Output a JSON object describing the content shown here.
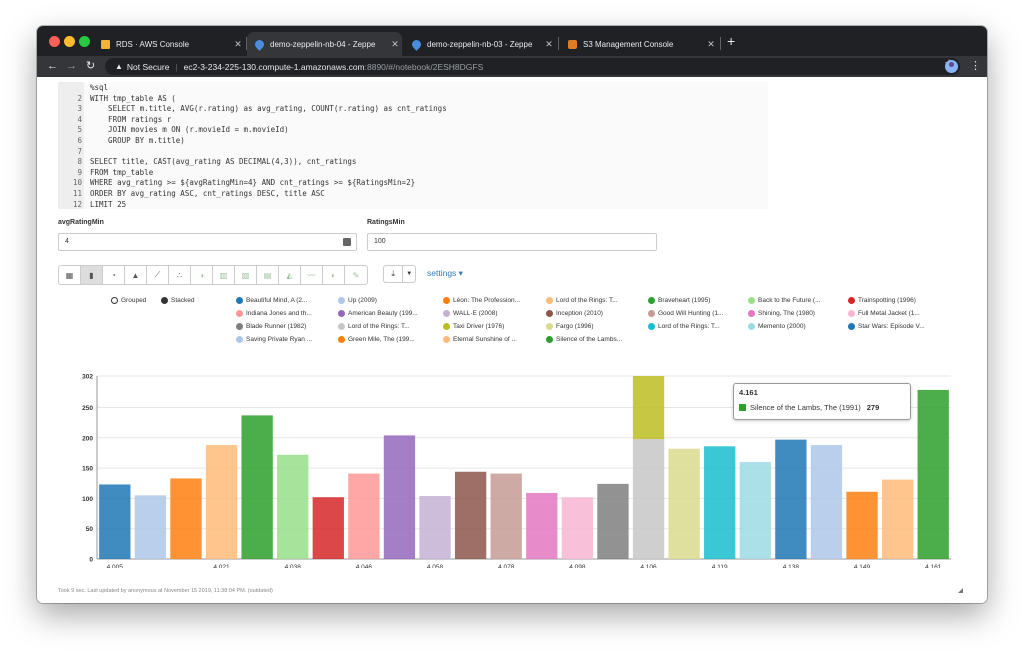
{
  "tabs": [
    {
      "title": "RDS · AWS Console",
      "icon": "aws-box-icon",
      "color": "#f2b632"
    },
    {
      "title": "demo-zeppelin-nb-04 - Zeppe",
      "icon": "zeppelin-icon",
      "color": "#4a8ce0"
    },
    {
      "title": "demo-zeppelin-nb-03 - Zeppe",
      "icon": "zeppelin-icon",
      "color": "#4a8ce0"
    },
    {
      "title": "S3 Management Console",
      "icon": "aws-s3-icon",
      "color": "#e07c24"
    }
  ],
  "address": {
    "security": "Not Secure",
    "host": "ec2-3-234-225-130.compute-1.amazonaws.com",
    "path": ":8890/#/notebook/2ESH8DGFS"
  },
  "code": [
    {
      "n": "",
      "t": "%sql"
    },
    {
      "n": "2",
      "t": "WITH tmp_table AS ("
    },
    {
      "n": "3",
      "t": "    SELECT m.title, AVG(r.rating) as avg_rating, COUNT(r.rating) as cnt_ratings"
    },
    {
      "n": "4",
      "t": "    FROM ratings r"
    },
    {
      "n": "5",
      "t": "    JOIN movies m ON (r.movieId = m.movieId)"
    },
    {
      "n": "6",
      "t": "    GROUP BY m.title)"
    },
    {
      "n": "7",
      "t": ""
    },
    {
      "n": "8",
      "t": "SELECT title, CAST(avg_rating AS DECIMAL(4,3)), cnt_ratings"
    },
    {
      "n": "9",
      "t": "FROM tmp_table"
    },
    {
      "n": "10",
      "t": "WHERE avg_rating >= ${avgRatingMin=4} AND cnt_ratings >= ${RatingsMin=2}"
    },
    {
      "n": "11",
      "t": "ORDER BY avg_rating ASC, cnt_ratings DESC, title ASC"
    },
    {
      "n": "12",
      "t": "LIMIT 25"
    }
  ],
  "params": {
    "avg_label": "avgRatingMin",
    "avg_value": "4",
    "min_label": "RatingsMin",
    "min_value": "100"
  },
  "vis_toolbar": [
    "table-icon",
    "bar-chart-icon",
    "pie-chart-icon",
    "area-chart-icon",
    "line-chart-icon",
    "scatter-chart-icon",
    "pie-alt-icon",
    "column-icon",
    "grid-icon",
    "table-alt-icon",
    "area-alt-icon",
    "line-alt-icon",
    "map-icon",
    "multiline-icon"
  ],
  "settings_label": "settings",
  "legend": {
    "grouped": "Grouped",
    "stacked": "Stacked",
    "items": [
      {
        "label": "Beautiful Mind, A (2...",
        "color": "#1f77b4"
      },
      {
        "label": "Up (2009)",
        "color": "#aec7e8"
      },
      {
        "label": "Léon: The Profession...",
        "color": "#ff7f0e"
      },
      {
        "label": "Lord of the Rings: T...",
        "color": "#ffbb78"
      },
      {
        "label": "Braveheart (1995)",
        "color": "#2ca02c"
      },
      {
        "label": "Back to the Future (...",
        "color": "#98df8a"
      },
      {
        "label": "Trainspotting (1996)",
        "color": "#d62728"
      },
      {
        "label": "Indiana Jones and th...",
        "color": "#ff9896"
      },
      {
        "label": "American Beauty (199...",
        "color": "#9467bd"
      },
      {
        "label": "WALL·E (2008)",
        "color": "#c5b0d5"
      },
      {
        "label": "Inception (2010)",
        "color": "#8c564b"
      },
      {
        "label": "Good Will Hunting (1...",
        "color": "#c49c94"
      },
      {
        "label": "Shining, The (1980)",
        "color": "#e377c2"
      },
      {
        "label": "Full Metal Jacket (1...",
        "color": "#f7b6d2"
      },
      {
        "label": "Blade Runner (1982)",
        "color": "#7f7f7f"
      },
      {
        "label": "Lord of the Rings: T...",
        "color": "#c7c7c7"
      },
      {
        "label": "Taxi Driver (1976)",
        "color": "#bcbd22"
      },
      {
        "label": "Fargo (1996)",
        "color": "#dbdb8d"
      },
      {
        "label": "Lord of the Rings: T...",
        "color": "#17becf"
      },
      {
        "label": "Memento (2000)",
        "color": "#9edae5"
      },
      {
        "label": "Star Wars: Episode V...",
        "color": "#1f77b4"
      },
      {
        "label": "Saving Private Ryan ...",
        "color": "#aec7e8"
      },
      {
        "label": "Green Mile, The (199...",
        "color": "#ff7f0e"
      },
      {
        "label": "Eternal Sunshine of ...",
        "color": "#ffbb78"
      },
      {
        "label": "Silence of the Lambs...",
        "color": "#2ca02c"
      }
    ]
  },
  "tooltip": {
    "title": "4.161",
    "series": "Silence of the Lambs, The (1991)",
    "value": "279",
    "color": "#2ca02c"
  },
  "footer": "Took 9 sec. Last updated by anonymous at November 15 2019, 11:38:04 PM. (outdated)",
  "chart_data": {
    "type": "bar",
    "stacked": true,
    "ylim": [
      0,
      302
    ],
    "yticks": [
      0,
      50,
      100,
      150,
      200,
      250,
      302
    ],
    "xticks": [
      "4.005",
      "4.021",
      "4.038",
      "4.046",
      "4.058",
      "4.078",
      "4.098",
      "4.106",
      "4.119",
      "4.138",
      "4.149",
      "4.161"
    ],
    "grid": true,
    "bars": [
      {
        "value": 123,
        "color": "#1f77b4",
        "tick": "4.005"
      },
      {
        "value": 105,
        "color": "#aec7e8",
        "tick": ""
      },
      {
        "value": 133,
        "color": "#ff7f0e",
        "tick": ""
      },
      {
        "value": 188,
        "color": "#ffbb78",
        "tick": "4.021"
      },
      {
        "value": 237,
        "color": "#2ca02c",
        "tick": ""
      },
      {
        "value": 172,
        "color": "#98df8a",
        "tick": "4.038"
      },
      {
        "value": 102,
        "color": "#d62728",
        "tick": ""
      },
      {
        "value": 141,
        "color": "#ff9896",
        "tick": "4.046"
      },
      {
        "value": 204,
        "color": "#9467bd",
        "tick": ""
      },
      {
        "value": 104,
        "color": "#c5b0d5",
        "tick": "4.058"
      },
      {
        "value": 144,
        "color": "#8c564b",
        "tick": ""
      },
      {
        "value": 141,
        "color": "#c49c94",
        "tick": "4.078"
      },
      {
        "value": 109,
        "color": "#e377c2",
        "tick": ""
      },
      {
        "value": 102,
        "color": "#f7b6d2",
        "tick": "4.098"
      },
      {
        "value": 124,
        "color": "#7f7f7f",
        "tick": ""
      },
      {
        "value": 198,
        "color": "#c7c7c7",
        "tick": "4.106",
        "stack": [
          {
            "value": 104,
            "color": "#bcbd22"
          }
        ]
      },
      {
        "value": 182,
        "color": "#dbdb8d",
        "tick": ""
      },
      {
        "value": 186,
        "color": "#17becf",
        "tick": "4.119"
      },
      {
        "value": 160,
        "color": "#9edae5",
        "tick": ""
      },
      {
        "value": 197,
        "color": "#1f77b4",
        "tick": "4.138"
      },
      {
        "value": 188,
        "color": "#aec7e8",
        "tick": ""
      },
      {
        "value": 111,
        "color": "#ff7f0e",
        "tick": "4.149"
      },
      {
        "value": 131,
        "color": "#ffbb78",
        "tick": ""
      },
      {
        "value": 279,
        "color": "#2ca02c",
        "tick": "4.161"
      }
    ]
  }
}
